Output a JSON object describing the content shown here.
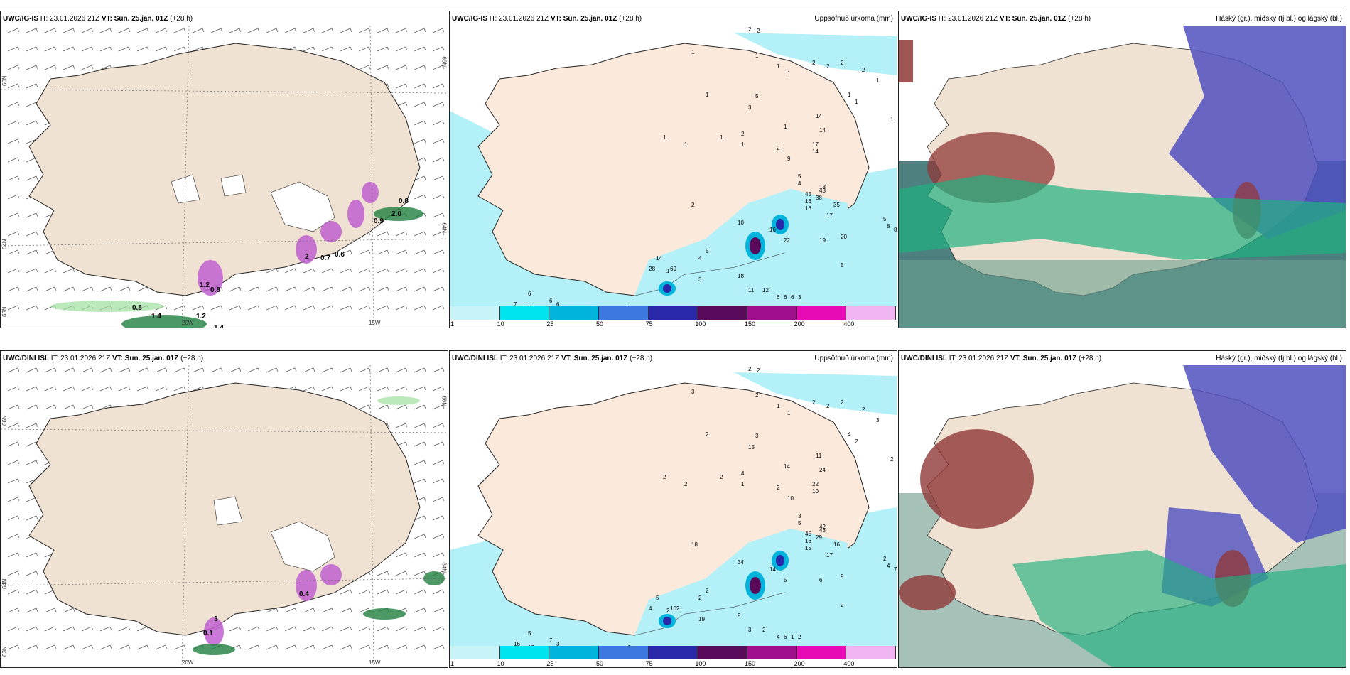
{
  "panels": [
    {
      "model": "UWC/IG-IS",
      "it": "IT: 23.01.2026 21Z",
      "vt_label": "VT:",
      "vt": "Sun. 25.jan. 01Z",
      "lead": "(+28 h)",
      "right_title": ""
    },
    {
      "model": "UWC/IG-IS",
      "it": "IT: 23.01.2026 21Z",
      "vt_label": "VT:",
      "vt": "Sun. 25.jan. 01Z",
      "lead": "(+28 h)",
      "right_title": "Uppsöfnuð úrkoma (mm)"
    },
    {
      "model": "UWC/IG-IS",
      "it": "IT: 23.01.2026 21Z",
      "vt_label": "VT:",
      "vt": "Sun. 25.jan. 01Z",
      "lead": "(+28 h)",
      "right_title": "Háský (gr.), miðský (fj.bl.) og lágský (bl.)"
    },
    {
      "model": "UWC/DINI ISL",
      "it": "IT: 23.01.2026 21Z",
      "vt_label": "VT:",
      "vt": "Sun. 25.jan. 01Z",
      "lead": "(+28 h)",
      "right_title": ""
    },
    {
      "model": "UWC/DINI ISL",
      "it": "IT: 23.01.2026 21Z",
      "vt_label": "VT:",
      "vt": "Sun. 25.jan. 01Z",
      "lead": "(+28 h)",
      "right_title": "Uppsöfnuð úrkoma (mm)"
    },
    {
      "model": "UWC/DINI ISL",
      "it": "IT: 23.01.2026 21Z",
      "vt_label": "VT:",
      "vt": "Sun. 25.jan. 01Z",
      "lead": "(+28 h)",
      "right_title": "Háský (gr.), miðský (fj.bl.) og lágský (bl.)"
    }
  ],
  "axes": {
    "lon_20w": "20W",
    "lon_15w": "15W",
    "lat_66n": "66N",
    "lat_64n": "64N",
    "lat_63n": "63N"
  },
  "colorbar": {
    "labels": [
      "1",
      "10",
      "25",
      "50",
      "75",
      "100",
      "150",
      "200",
      "400"
    ],
    "colors": [
      "#c8f4f8",
      "#00e4f0",
      "#00b4dc",
      "#3c78e0",
      "#2828a8",
      "#5a0a5a",
      "#a0108c",
      "#e80ab4",
      "#f0b4f0"
    ]
  },
  "precip_labels_top": [
    "2",
    "2",
    "1",
    "1",
    "1",
    "1",
    "2",
    "2",
    "2",
    "2",
    "1",
    "1",
    "1",
    "1",
    "5",
    "3",
    "14",
    "14",
    "17",
    "14",
    "9",
    "1",
    "2",
    "1",
    "2",
    "1",
    "1",
    "1",
    "1",
    "5",
    "4",
    "18",
    "38",
    "35",
    "2",
    "17",
    "19",
    "20",
    "5",
    "8",
    "8",
    "28",
    "14",
    "4",
    "5",
    "10",
    "16",
    "22",
    "18",
    "3",
    "6",
    "7",
    "7",
    "6",
    "6",
    "11",
    "12",
    "20",
    "6",
    "6",
    "6",
    "6",
    "3",
    "5",
    "16",
    "16",
    "43",
    "45",
    "69",
    "1"
  ],
  "precip_labels_bottom": [
    "2",
    "2",
    "3",
    "2",
    "1",
    "1",
    "2",
    "2",
    "2",
    "2",
    "3",
    "4",
    "2",
    "2",
    "3",
    "15",
    "11",
    "24",
    "22",
    "10",
    "10",
    "14",
    "4",
    "1",
    "2",
    "2",
    "2",
    "2",
    "2",
    "3",
    "5",
    "42",
    "29",
    "16",
    "18",
    "17",
    "6",
    "9",
    "2",
    "4",
    "7",
    "4",
    "5",
    "2",
    "2",
    "34",
    "14",
    "5",
    "9",
    "19",
    "5",
    "16",
    "13",
    "7",
    "3",
    "3",
    "2",
    "2",
    "1",
    "4",
    "6",
    "1",
    "2",
    "2",
    "16",
    "15",
    "43",
    "45",
    "102",
    "2"
  ],
  "wind_labels_top": [
    "0.8",
    "0.9",
    "2.0",
    "1.2",
    "0.8",
    "1.4",
    "1.2",
    "0.8",
    "1.4",
    "0.7",
    "0.6",
    "2"
  ],
  "wind_labels_bottom": [
    "0.1",
    "0.4",
    "3"
  ],
  "colors": {
    "land": "#f5e5d5",
    "ice": "#ffffff",
    "coast": "#222222",
    "precip_light": "#c8f4f8"
  }
}
